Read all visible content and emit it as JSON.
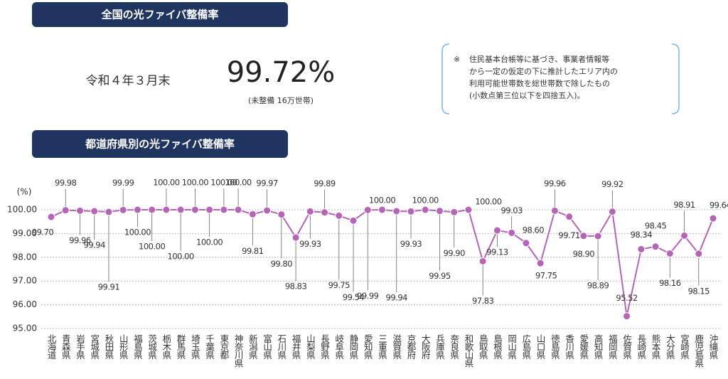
{
  "header": {
    "title": "全国の光ファイバ整備率",
    "date": "令和４年３月末",
    "rate": "99.72%",
    "rate_note": "(未整備 16万世帯)",
    "note_mark": "※",
    "note_lines": [
      "住民基本台帳等に基づき、事業者情報等",
      "から一定の仮定の下に推計したエリア内の",
      "利用可能世帯数を総世帯数で除したもの",
      "(小数点第三位以下を四捨五入)。"
    ]
  },
  "chart_data": {
    "type": "line",
    "title": "都道府県別の光ファイバ整備率",
    "ylabel": "(%)",
    "categories": [
      "北海道",
      "青森県",
      "岩手県",
      "宮城県",
      "秋田県",
      "山形県",
      "福島県",
      "茨城県",
      "栃木県",
      "群馬県",
      "埼玉県",
      "千葉県",
      "東京都",
      "神奈川県",
      "新潟県",
      "富山県",
      "石川県",
      "福井県",
      "山梨県",
      "長野県",
      "岐阜県",
      "静岡県",
      "愛知県",
      "三重県",
      "滋賀県",
      "京都府",
      "大阪府",
      "兵庫県",
      "奈良県",
      "和歌山県",
      "鳥取県",
      "島根県",
      "岡山県",
      "広島県",
      "山口県",
      "徳島県",
      "香川県",
      "愛媛県",
      "高知県",
      "福岡県",
      "佐賀県",
      "長崎県",
      "熊本県",
      "大分県",
      "宮崎県",
      "鹿児島県",
      "沖縄県"
    ],
    "values": [
      99.7,
      99.98,
      99.96,
      99.94,
      99.91,
      99.99,
      100,
      100,
      100,
      100,
      100,
      100,
      100,
      100,
      99.81,
      99.97,
      99.8,
      98.83,
      99.93,
      99.89,
      99.75,
      99.54,
      99.99,
      100,
      99.94,
      99.93,
      100,
      99.95,
      99.9,
      100,
      97.83,
      99.13,
      99.03,
      98.6,
      97.75,
      99.96,
      99.71,
      98.9,
      98.89,
      99.92,
      95.52,
      98.34,
      98.45,
      98.16,
      98.91,
      98.15,
      99.64
    ],
    "value_labels": [
      "99.70",
      "99.98",
      "99.96",
      "99.94",
      "99.91",
      "99.99",
      "100.00",
      "100.00",
      "100.00",
      "100.00",
      "100.00",
      "100.00",
      "100.00",
      "100.00",
      "99.81",
      "99.97",
      "99.80",
      "98.83",
      "99.93",
      "99.89",
      "99.75",
      "99.54",
      "99.99",
      "100.00",
      "99.94",
      "99.93",
      "100.00",
      "99.95",
      "99.90",
      "100.00",
      "97.83",
      "99.13",
      "99.03",
      "98.60",
      "97.75",
      "99.96",
      "99.71",
      "98.90",
      "98.89",
      "99.92",
      "95.52",
      "98.34",
      "98.45",
      "98.16",
      "98.91",
      "98.15",
      "99.64"
    ],
    "color": "#b565b5",
    "ylim": [
      95,
      100
    ],
    "yticks": [
      {
        "value": 95,
        "label": "95.00"
      },
      {
        "value": 96,
        "label": "96.00"
      },
      {
        "value": 97,
        "label": "97.00"
      },
      {
        "value": 98,
        "label": "98.00"
      },
      {
        "value": 99,
        "label": "99.00"
      },
      {
        "value": 100,
        "label": "100.00"
      }
    ],
    "grid": true
  }
}
